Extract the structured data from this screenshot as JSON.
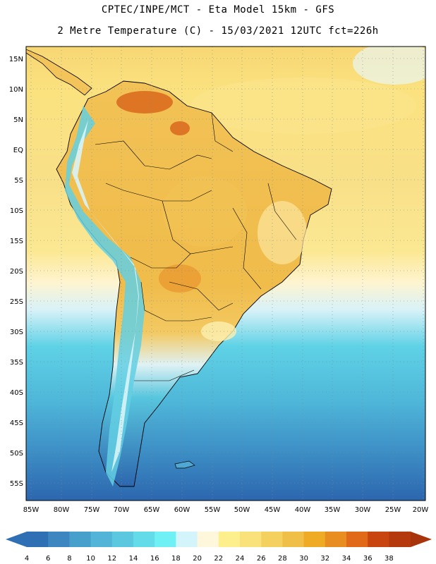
{
  "header": {
    "title_line1": "CPTEC/INPE/MCT -  Eta Model 15km - GFS",
    "title_line2": "2 Metre Temperature (C) - 15/03/2021 12UTC fct=226h"
  },
  "map": {
    "region": "South America",
    "lat_labels": [
      "15N",
      "10N",
      "5N",
      "EQ",
      "5S",
      "10S",
      "15S",
      "20S",
      "25S",
      "30S",
      "35S",
      "40S",
      "45S",
      "50S",
      "55S"
    ],
    "lon_labels": [
      "85W",
      "80W",
      "75W",
      "70W",
      "65W",
      "60W",
      "55W",
      "50W",
      "45W",
      "40W",
      "35W",
      "30W",
      "25W",
      "20W"
    ]
  },
  "colorbar": {
    "ticks": [
      "4",
      "6",
      "8",
      "10",
      "12",
      "14",
      "16",
      "18",
      "20",
      "22",
      "24",
      "26",
      "28",
      "30",
      "32",
      "34",
      "36",
      "38"
    ],
    "colors": [
      "#2f6fb3",
      "#3d86c0",
      "#47a0cc",
      "#52b5d8",
      "#5bc8e0",
      "#63dbe9",
      "#6ef0f5",
      "#d3f4fa",
      "#fff7dc",
      "#fdf08c",
      "#f9e27a",
      "#f4d05f",
      "#f0bf48",
      "#eeab23",
      "#e88d1f",
      "#e06a1a",
      "#c9450f",
      "#b43a0d"
    ],
    "underflow_color": "#2f6fb3",
    "overflow_color": "#a8340c"
  }
}
